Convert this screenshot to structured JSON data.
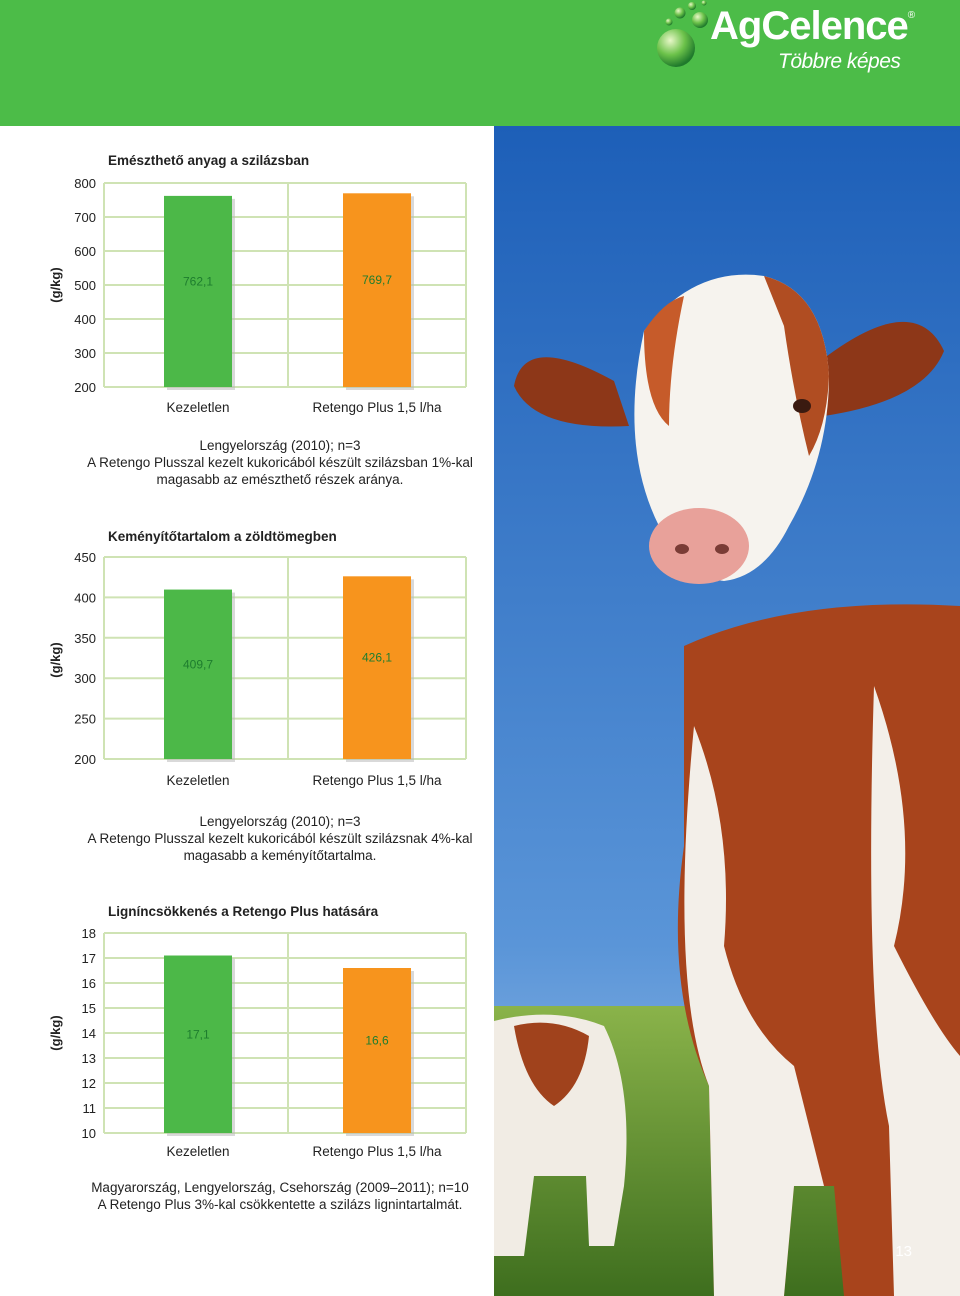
{
  "brand": {
    "name": "AgCelence",
    "registered": "®",
    "tagline": "Többre képes",
    "icon": "green-spheres-logo",
    "colors": {
      "header": "#4cbc48",
      "bar_untreated": "#4cb848",
      "bar_treated": "#f7941d",
      "grid": "#cfe3b4"
    }
  },
  "page": {
    "number": "13"
  },
  "chart_data": [
    {
      "type": "bar",
      "title": "Emészthető anyag a szilázsban",
      "ylabel": "(g/kg)",
      "yticks": [
        "800",
        "700",
        "600",
        "500",
        "400",
        "300",
        "200"
      ],
      "ylim": [
        200,
        800
      ],
      "categories": [
        "Kezeletlen",
        "Retengo Plus 1,5 l/ha"
      ],
      "values": [
        762.1,
        769.7
      ],
      "value_labels": [
        "762,1",
        "769,7"
      ],
      "caption": [
        "Lengyelország (2010); n=3",
        "A Retengo Plusszal kezelt kukoricából készült szilázsban 1%-kal",
        "magasabb az emészthető részek aránya."
      ]
    },
    {
      "type": "bar",
      "title": "Keményítőtartalom a zöldtömegben",
      "ylabel": "(g/kg)",
      "yticks": [
        "450",
        "400",
        "350",
        "300",
        "250",
        "200"
      ],
      "ylim": [
        200,
        450
      ],
      "categories": [
        "Kezeletlen",
        "Retengo Plus 1,5 l/ha"
      ],
      "values": [
        409.7,
        426.1
      ],
      "value_labels": [
        "409,7",
        "426,1"
      ],
      "caption": [
        "Lengyelország (2010); n=3",
        "A Retengo Plusszal kezelt kukoricából készült szilázsnak 4%-kal",
        "magasabb a keményítőtartalma."
      ]
    },
    {
      "type": "bar",
      "title": "Ligníncsökkenés a Retengo Plus hatására",
      "ylabel": "(g/kg)",
      "yticks": [
        "18",
        "17",
        "16",
        "15",
        "14",
        "13",
        "12",
        "11",
        "10"
      ],
      "ylim": [
        10,
        18
      ],
      "categories": [
        "Kezeletlen",
        "Retengo Plus 1,5 l/ha"
      ],
      "values": [
        17.1,
        16.6
      ],
      "value_labels": [
        "17,1",
        "16,6"
      ],
      "caption": [
        "Magyarország, Lengyelország, Csehország (2009–2011); n=10",
        "A Retengo Plus 3%-kal csökkentette a szilázs lignintartalmát."
      ]
    }
  ]
}
